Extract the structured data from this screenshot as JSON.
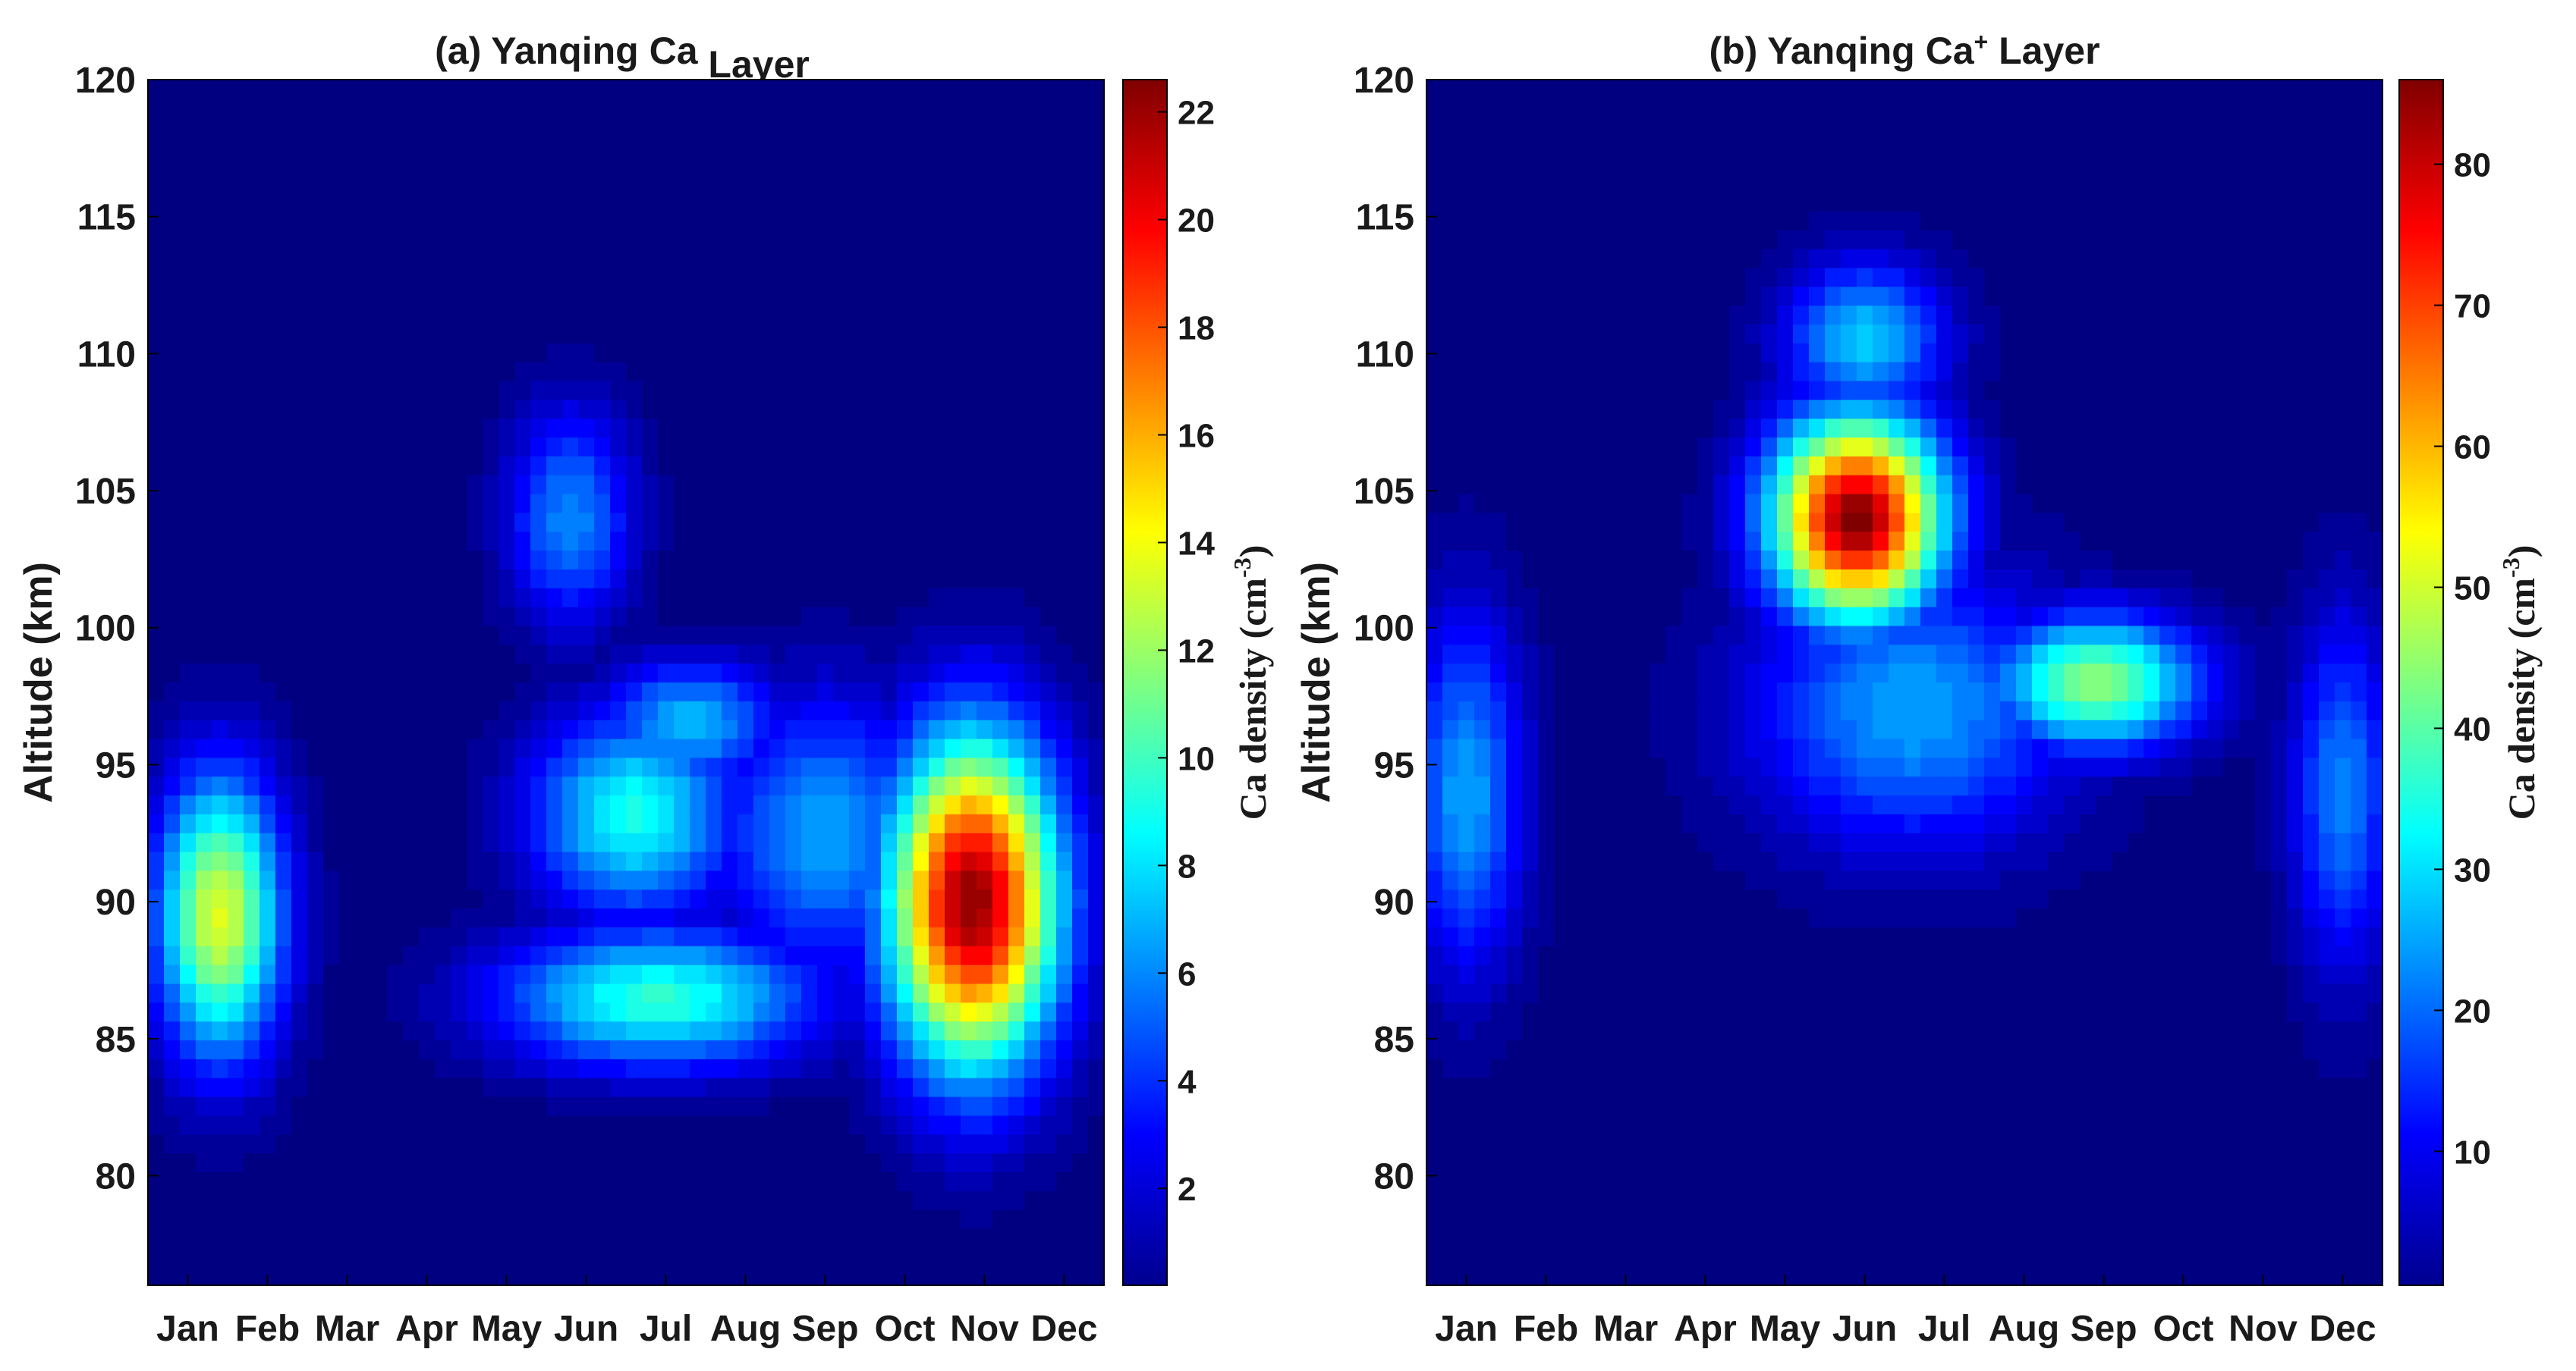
{
  "chart_data": [
    {
      "type": "heatmap",
      "title": "(a) Yanqing Ca Layer",
      "title_parts": {
        "pre": "(a) Yanqing Ca",
        "sup": "",
        "post": " Layer"
      },
      "xlabel": "",
      "ylabel": "Altitude (km)",
      "x_categories": [
        "Jan",
        "Feb",
        "Mar",
        "Apr",
        "May",
        "Jun",
        "Jul",
        "Aug",
        "Sep",
        "Oct",
        "Nov",
        "Dec"
      ],
      "ylim": [
        76,
        120
      ],
      "yticks": [
        80,
        85,
        90,
        95,
        100,
        105,
        110,
        115,
        120
      ],
      "colorbar": {
        "label": "Ca density (cm",
        "label_exp": "-3",
        "label_close": ")",
        "range": [
          0.2,
          22.6
        ],
        "ticks": [
          2,
          4,
          6,
          8,
          10,
          12,
          14,
          16,
          18,
          20,
          22
        ]
      },
      "background_value": 0.2,
      "features": [
        {
          "name": "Jan-Feb peak",
          "month": 1.4,
          "alt": 89.5,
          "value": 13.5,
          "spread_month": 0.55,
          "spread_alt": 3.6
        },
        {
          "name": "Nov main peak",
          "month": 10.85,
          "alt": 90.0,
          "value": 22.3,
          "spread_month": 0.75,
          "spread_alt": 4.2
        },
        {
          "name": "Jul lower peak",
          "month": 6.9,
          "alt": 86.5,
          "value": 9.5,
          "spread_month": 1.4,
          "spread_alt": 1.8
        },
        {
          "name": "Jun-Jul 93 km peak",
          "month": 6.6,
          "alt": 93.2,
          "value": 9.0,
          "spread_month": 0.9,
          "spread_alt": 2.6
        },
        {
          "name": "Jul 96 km peak",
          "month": 7.3,
          "alt": 96.5,
          "value": 7.0,
          "spread_month": 0.8,
          "spread_alt": 1.6
        },
        {
          "name": "May-Jun 104 km patch",
          "month": 5.8,
          "alt": 104.0,
          "value": 6.0,
          "spread_month": 0.55,
          "spread_alt": 2.8
        },
        {
          "name": "Sep-Oct patch",
          "month": 9.0,
          "alt": 92.5,
          "value": 6.5,
          "spread_month": 1.0,
          "spread_alt": 3.5
        }
      ]
    },
    {
      "type": "heatmap",
      "title": "(b) Yanqing Ca+ Layer",
      "title_parts": {
        "pre": "(b) Yanqing Ca",
        "sup": "+",
        "post": " Layer"
      },
      "xlabel": "",
      "ylabel": "Altitude (km)",
      "x_categories": [
        "Jan",
        "Feb",
        "Mar",
        "Apr",
        "May",
        "Jun",
        "Jul",
        "Aug",
        "Sep",
        "Oct",
        "Nov",
        "Dec"
      ],
      "ylim": [
        76,
        120
      ],
      "yticks": [
        80,
        85,
        90,
        95,
        100,
        105,
        110,
        115,
        120
      ],
      "colorbar": {
        "label": "Ca density (cm",
        "label_exp": "-3",
        "label_close": ")",
        "range": [
          0.5,
          86
        ],
        "ticks": [
          10,
          20,
          30,
          40,
          50,
          60,
          70,
          80
        ]
      },
      "background_value": 0.5,
      "features": [
        {
          "name": "Jun 104 km main peak",
          "month": 5.9,
          "alt": 104.0,
          "value": 86.0,
          "spread_month": 0.75,
          "spread_alt": 2.6
        },
        {
          "name": "Sep 98 km peak",
          "month": 8.9,
          "alt": 98.0,
          "value": 45.0,
          "spread_month": 0.9,
          "spread_alt": 1.7
        },
        {
          "name": "Jun-Jul 110 km lobe",
          "month": 6.0,
          "alt": 110.5,
          "value": 28.0,
          "spread_month": 0.7,
          "spread_alt": 2.0
        },
        {
          "name": "Jan 94 km patch",
          "month": 1.0,
          "alt": 94.0,
          "value": 25.0,
          "spread_month": 0.5,
          "spread_alt": 4.5
        },
        {
          "name": "Dec 94 km patch",
          "month": 12.0,
          "alt": 94.0,
          "value": 22.0,
          "spread_month": 0.45,
          "spread_alt": 4.5
        },
        {
          "name": "Jun-Jul 97 km region",
          "month": 6.6,
          "alt": 97.0,
          "value": 25.0,
          "spread_month": 1.4,
          "spread_alt": 3.5
        }
      ]
    }
  ]
}
